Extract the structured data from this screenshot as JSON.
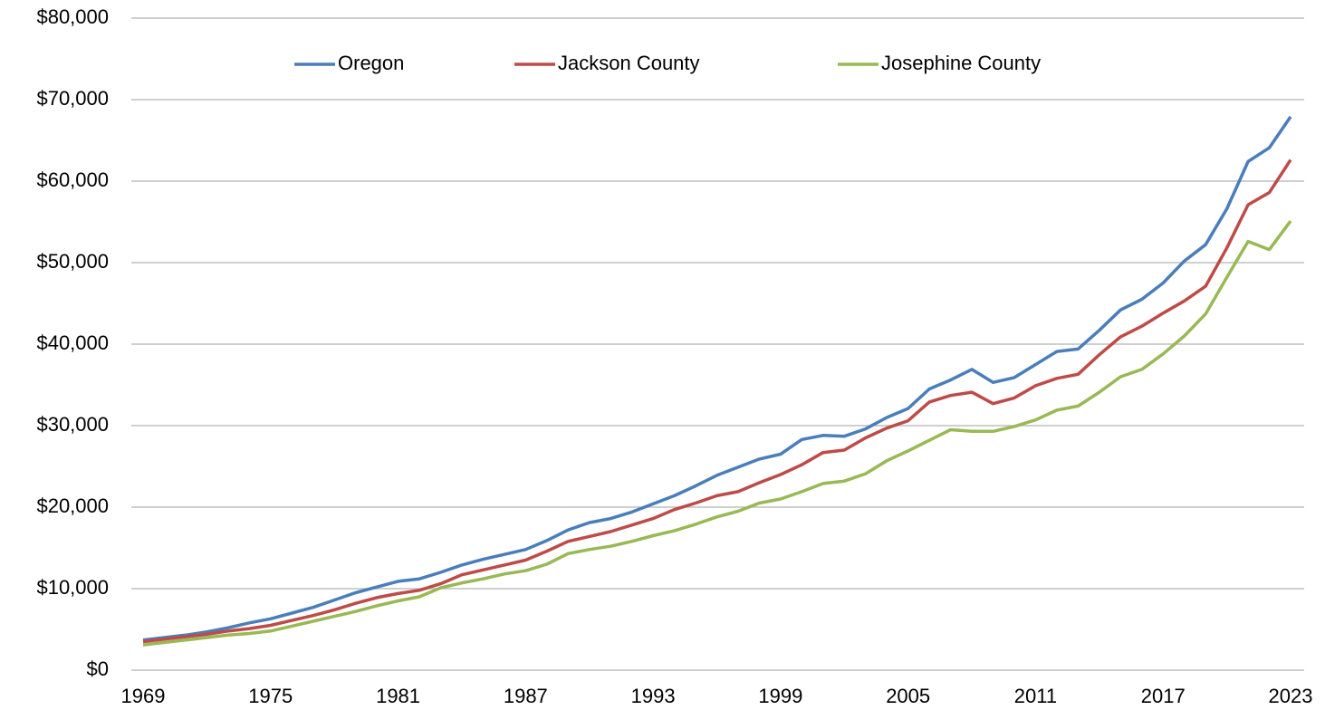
{
  "chart_data": {
    "type": "line",
    "x": [
      1969,
      1970,
      1971,
      1972,
      1973,
      1974,
      1975,
      1976,
      1977,
      1978,
      1979,
      1980,
      1981,
      1982,
      1983,
      1984,
      1985,
      1986,
      1987,
      1988,
      1989,
      1990,
      1991,
      1992,
      1993,
      1994,
      1995,
      1996,
      1997,
      1998,
      1999,
      2000,
      2001,
      2002,
      2003,
      2004,
      2005,
      2006,
      2007,
      2008,
      2009,
      2010,
      2011,
      2012,
      2013,
      2014,
      2015,
      2016,
      2017,
      2018,
      2019,
      2020,
      2021,
      2022,
      2023
    ],
    "series": [
      {
        "name": "Oregon",
        "color": "#4a7ebb",
        "values": [
          3700,
          4000,
          4300,
          4700,
          5200,
          5800,
          6300,
          7000,
          7700,
          8600,
          9500,
          10200,
          10900,
          11200,
          12000,
          12900,
          13600,
          14200,
          14800,
          15900,
          17200,
          18100,
          18600,
          19400,
          20400,
          21400,
          22600,
          23900,
          24900,
          25900,
          26500,
          28300,
          28800,
          28700,
          29600,
          31000,
          32100,
          34500,
          35600,
          36900,
          35300,
          35900,
          37500,
          39100,
          39400,
          41700,
          44200,
          45500,
          47500,
          50200,
          52200,
          56600,
          62400,
          64100,
          67900
        ]
      },
      {
        "name": "Jackson County",
        "color": "#be4b48",
        "values": [
          3500,
          3800,
          4100,
          4400,
          4800,
          5100,
          5500,
          6100,
          6700,
          7400,
          8200,
          8900,
          9400,
          9800,
          10600,
          11700,
          12300,
          12900,
          13500,
          14600,
          15800,
          16400,
          17000,
          17800,
          18600,
          19700,
          20500,
          21400,
          21900,
          23000,
          24000,
          25200,
          26700,
          27000,
          28500,
          29700,
          30600,
          32900,
          33700,
          34100,
          32700,
          33400,
          34900,
          35800,
          36300,
          38700,
          40900,
          42200,
          43800,
          45300,
          47100,
          51800,
          57100,
          58600,
          62600
        ]
      },
      {
        "name": "Josephine County",
        "color": "#98b954",
        "values": [
          3100,
          3400,
          3700,
          4000,
          4300,
          4500,
          4800,
          5400,
          6000,
          6600,
          7200,
          7900,
          8500,
          9000,
          10100,
          10700,
          11200,
          11800,
          12200,
          13000,
          14300,
          14800,
          15200,
          15800,
          16500,
          17100,
          17900,
          18800,
          19500,
          20500,
          21000,
          21900,
          22900,
          23200,
          24100,
          25700,
          26900,
          28200,
          29500,
          29300,
          29300,
          29900,
          30700,
          31900,
          32400,
          34100,
          36000,
          36900,
          38800,
          41000,
          43700,
          48200,
          52600,
          51600,
          55100
        ]
      }
    ],
    "xlim": [
      1969,
      2023
    ],
    "xticks": [
      1969,
      1975,
      1981,
      1987,
      1993,
      1999,
      2005,
      2011,
      2017,
      2023
    ],
    "ylim": [
      0,
      80000
    ],
    "yticks": [
      {
        "value": 0,
        "label": "$0"
      },
      {
        "value": 10000,
        "label": "$10,000"
      },
      {
        "value": 20000,
        "label": "$20,000"
      },
      {
        "value": 30000,
        "label": "$30,000"
      },
      {
        "value": 40000,
        "label": "$40,000"
      },
      {
        "value": 50000,
        "label": "$50,000"
      },
      {
        "value": 60000,
        "label": "$60,000"
      },
      {
        "value": 70000,
        "label": "$70,000"
      },
      {
        "value": 80000,
        "label": "$80,000"
      }
    ],
    "grid": true,
    "legend": "top"
  }
}
